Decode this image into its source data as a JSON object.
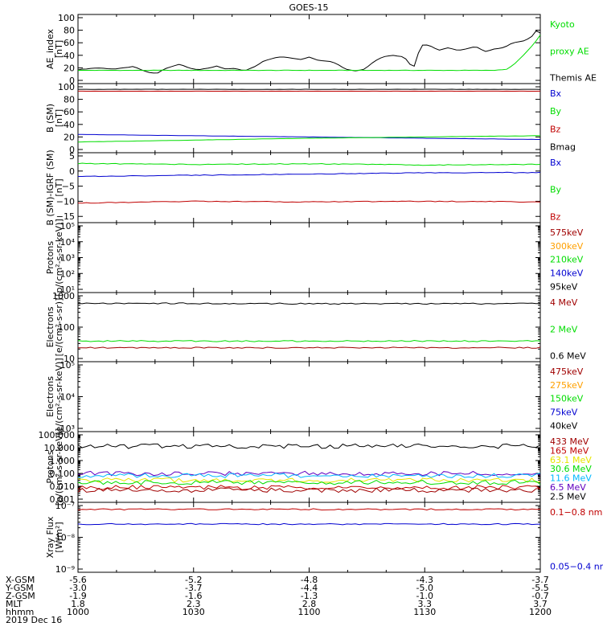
{
  "title": "GOES-15",
  "colors": {
    "black": "#000000",
    "red": "#c00000",
    "green": "#00dd00",
    "blue": "#0000d0",
    "cyan": "#00b8ff",
    "orange": "#ffa000",
    "yellow": "#e6e600",
    "purple": "#6000c0",
    "darkred": "#a00000"
  },
  "time_axis": {
    "ticks": [
      "1000",
      "1030",
      "1100",
      "1130",
      "1200"
    ],
    "range": [
      "10:00",
      "12:00"
    ],
    "info_rows": [
      {
        "label": "X-GSM",
        "values": [
          "-5.6",
          "-5.2",
          "-4.8",
          "-4.3",
          "-3.7"
        ]
      },
      {
        "label": "Y-GSM",
        "values": [
          "-3.0",
          "-3.7",
          "-4.4",
          "-5.0",
          "-5.5"
        ]
      },
      {
        "label": "Z-GSM",
        "values": [
          "-1.9",
          "-1.6",
          "-1.3",
          "-1.0",
          "-0.7"
        ]
      },
      {
        "label": "MLT",
        "values": [
          "1.8",
          "2.3",
          "2.8",
          "3.3",
          "3.7"
        ]
      },
      {
        "label": "hhmm",
        "values": [
          "1000",
          "1030",
          "1100",
          "1130",
          "1200"
        ]
      }
    ],
    "date": "2019 Dec 16"
  },
  "chart_data": [
    {
      "type": "line",
      "ylabel": [
        "AE_index",
        "[nT]"
      ],
      "ylim": [
        0,
        100
      ],
      "scale": "linear",
      "yticks": [
        0,
        20,
        40,
        60,
        80,
        100
      ],
      "ytick_labels": [
        "0",
        "20",
        "40",
        "60",
        "80",
        "100"
      ],
      "legend": [
        {
          "text": "Kyoto",
          "color": "green"
        },
        {
          "text": "proxy AE",
          "color": "green"
        },
        {
          "text": "Themis AE",
          "color": "black"
        }
      ],
      "series": [
        {
          "name": "Themis AE",
          "color": "black",
          "t": [
            0,
            4,
            8,
            12,
            15,
            17,
            19,
            22,
            24,
            26,
            28,
            30,
            32,
            34,
            36,
            38,
            40,
            42,
            44,
            46,
            48,
            50,
            52,
            55,
            58,
            60,
            62,
            64,
            66,
            68,
            70,
            71,
            72,
            73,
            74,
            75,
            76,
            78,
            80,
            82,
            84,
            86,
            88,
            90,
            92,
            94,
            96,
            98,
            99,
            100
          ],
          "values": [
            17,
            20,
            18,
            22,
            13,
            11,
            19,
            26,
            20,
            17,
            19,
            23,
            18,
            19,
            15,
            21,
            30,
            35,
            38,
            36,
            33,
            37,
            32,
            30,
            18,
            15,
            18,
            30,
            38,
            40,
            38,
            34,
            24,
            22,
            56,
            57,
            56,
            48,
            52,
            48,
            50,
            54,
            46,
            50,
            52,
            60,
            62,
            68,
            79,
            76
          ]
        },
        {
          "name": "Kyoto proxy AE",
          "color": "green",
          "t": [
            0,
            90,
            93,
            95,
            97,
            99,
            100
          ],
          "values": [
            16,
            16,
            18,
            30,
            45,
            62,
            72
          ]
        }
      ]
    },
    {
      "type": "line",
      "ylabel": [
        "B (SM)",
        "[nT]"
      ],
      "ylim": [
        0,
        100
      ],
      "scale": "linear",
      "yticks": [
        0,
        20,
        40,
        60,
        80,
        100
      ],
      "ytick_labels": [
        "0",
        "20",
        "40",
        "60",
        "80",
        "100"
      ],
      "legend": [
        {
          "text": "Bx",
          "color": "blue"
        },
        {
          "text": "By",
          "color": "green"
        },
        {
          "text": "Bz",
          "color": "red"
        },
        {
          "text": "Bmag",
          "color": "black"
        }
      ],
      "series": [
        {
          "name": "Bmag",
          "color": "black",
          "t": [
            0,
            100
          ],
          "values": [
            96,
            96
          ]
        },
        {
          "name": "Bz",
          "color": "red",
          "t": [
            0,
            100
          ],
          "values": [
            93,
            93
          ]
        },
        {
          "name": "Bx",
          "color": "blue",
          "t": [
            0,
            50,
            100
          ],
          "values": [
            24,
            20,
            16
          ]
        },
        {
          "name": "By",
          "color": "green",
          "t": [
            0,
            50,
            100
          ],
          "values": [
            12,
            18,
            22
          ]
        }
      ]
    },
    {
      "type": "line",
      "ylabel": [
        "B (SM)-IGRF (SM)",
        "[nT]"
      ],
      "ylim": [
        -16,
        5
      ],
      "scale": "linear",
      "yticks": [
        5,
        0,
        -5,
        -10,
        -15
      ],
      "ytick_labels": [
        "5",
        "0",
        "−5",
        "−10",
        "−15"
      ],
      "legend": [
        {
          "text": "Bx",
          "color": "blue"
        },
        {
          "text": "By",
          "color": "green"
        },
        {
          "text": "Bz",
          "color": "red"
        }
      ],
      "series": [
        {
          "name": "By",
          "color": "green",
          "t": [
            0,
            25,
            50,
            75,
            100
          ],
          "values": [
            2.5,
            2.2,
            2.4,
            2.0,
            2.2
          ]
        },
        {
          "name": "Bx",
          "color": "blue",
          "t": [
            0,
            25,
            50,
            75,
            100
          ],
          "values": [
            -1.8,
            -1.4,
            -1.0,
            -0.6,
            -0.5
          ]
        },
        {
          "name": "Bz",
          "color": "red",
          "t": [
            0,
            25,
            50,
            75,
            100
          ],
          "values": [
            -10.6,
            -10.0,
            -10.2,
            -10.0,
            -10.2
          ]
        }
      ]
    },
    {
      "type": "line",
      "ylabel": [
        "Protons",
        "[p/(cm²-s-sr-keV)]"
      ],
      "ylim": [
        10,
        100000
      ],
      "scale": "log",
      "yticks": [
        10,
        100,
        1000,
        10000,
        100000
      ],
      "ytick_labels": [
        "10¹",
        "10²",
        "10³",
        "10⁴",
        "10⁵"
      ],
      "legend": [
        {
          "text": "575keV",
          "color": "darkred"
        },
        {
          "text": "300keV",
          "color": "orange"
        },
        {
          "text": "210keV",
          "color": "green"
        },
        {
          "text": "140keV",
          "color": "blue"
        },
        {
          "text": "95keV",
          "color": "black"
        }
      ],
      "series": []
    },
    {
      "type": "line",
      "ylabel": [
        "Electrons",
        "[e/(cm²-s-sr)]"
      ],
      "ylim": [
        10,
        1000
      ],
      "scale": "log",
      "yticks": [
        10,
        100,
        1000
      ],
      "ytick_labels": [
        "10",
        "100",
        "1000"
      ],
      "legend": [
        {
          "text": "4 MeV",
          "color": "darkred"
        },
        {
          "text": "2 MeV",
          "color": "green"
        },
        {
          "text": "0.6 MeV",
          "color": "black"
        }
      ],
      "series": [
        {
          "name": "0.6 MeV",
          "color": "black",
          "t": [
            0,
            50,
            100
          ],
          "values": [
            580,
            560,
            560
          ]
        },
        {
          "name": "2 MeV",
          "color": "green",
          "t": [
            0,
            50,
            100
          ],
          "values": [
            36,
            36,
            36
          ]
        },
        {
          "name": "4 MeV",
          "color": "darkred",
          "t": [
            0,
            50,
            100
          ],
          "values": [
            22,
            22,
            22
          ]
        }
      ]
    },
    {
      "type": "line",
      "ylabel": [
        "Electrons",
        "[e/(cm²-s-sr-keV)]"
      ],
      "ylim": [
        1000,
        100000
      ],
      "scale": "log",
      "yticks": [
        1000,
        10000,
        100000
      ],
      "ytick_labels": [
        "10³",
        "10⁴",
        "10⁵"
      ],
      "legend": [
        {
          "text": "475keV",
          "color": "darkred"
        },
        {
          "text": "275keV",
          "color": "orange"
        },
        {
          "text": "150keV",
          "color": "green"
        },
        {
          "text": "75keV",
          "color": "blue"
        },
        {
          "text": "40keV",
          "color": "black"
        }
      ],
      "series": []
    },
    {
      "type": "line",
      "ylabel": [
        "Protons",
        "[p/(cm²-s-sr-keV)]"
      ],
      "ylim": [
        0.001,
        100
      ],
      "scale": "log",
      "yticks": [
        0.001,
        0.01,
        0.1,
        1,
        10,
        100
      ],
      "ytick_labels": [
        "0.001",
        "0.010",
        "0.100",
        "1.000",
        "10.000",
        "100.000"
      ],
      "legend": [
        {
          "text": "433 MeV",
          "color": "darkred"
        },
        {
          "text": "165 MeV",
          "color": "red"
        },
        {
          "text": "63.1 MeV",
          "color": "yellow"
        },
        {
          "text": "30.6 MeV",
          "color": "green"
        },
        {
          "text": "11.6 MeV",
          "color": "cyan"
        },
        {
          "text": "6.5 MeV",
          "color": "purple"
        },
        {
          "text": "2.5 MeV",
          "color": "black"
        }
      ],
      "series": [
        {
          "name": "2.5 MeV",
          "color": "black",
          "t": [
            0,
            100
          ],
          "values": [
            13,
            13
          ]
        },
        {
          "name": "6.5 MeV",
          "color": "purple",
          "t": [
            0,
            100
          ],
          "values": [
            0.1,
            0.1
          ]
        },
        {
          "name": "11.6 MeV",
          "color": "cyan",
          "t": [
            0,
            100
          ],
          "values": [
            0.07,
            0.07
          ]
        },
        {
          "name": "63.1 MeV",
          "color": "yellow",
          "t": [
            0,
            100
          ],
          "values": [
            0.03,
            0.03
          ]
        },
        {
          "name": "30.6 MeV",
          "color": "green",
          "t": [
            0,
            100
          ],
          "values": [
            0.02,
            0.02
          ]
        },
        {
          "name": "165 MeV",
          "color": "red",
          "t": [
            0,
            100
          ],
          "values": [
            0.008,
            0.008
          ]
        },
        {
          "name": "433 MeV",
          "color": "darkred",
          "t": [
            0,
            100
          ],
          "values": [
            0.005,
            0.005
          ]
        }
      ]
    },
    {
      "type": "line",
      "ylabel": [
        "Xray Flux",
        "[W/m²]"
      ],
      "ylim": [
        1e-09,
        1e-07
      ],
      "scale": "log",
      "yticks": [
        1e-09,
        1e-08,
        1e-07
      ],
      "ytick_labels": [
        "10⁻⁹",
        "10⁻⁸",
        "10⁻⁷"
      ],
      "legend": [
        {
          "text": "0.1−0.8 nm",
          "color": "red"
        },
        {
          "text": "0.05−0.4 nm",
          "color": "blue"
        }
      ],
      "series": [
        {
          "name": "0.1−0.8 nm",
          "color": "red",
          "t": [
            0,
            50,
            100
          ],
          "values": [
            7.6e-08,
            7.6e-08,
            7.6e-08
          ]
        },
        {
          "name": "0.05−0.4 nm",
          "color": "blue",
          "t": [
            0,
            50,
            100
          ],
          "values": [
            2.6e-08,
            2.6e-08,
            2.6e-08
          ]
        }
      ]
    }
  ]
}
